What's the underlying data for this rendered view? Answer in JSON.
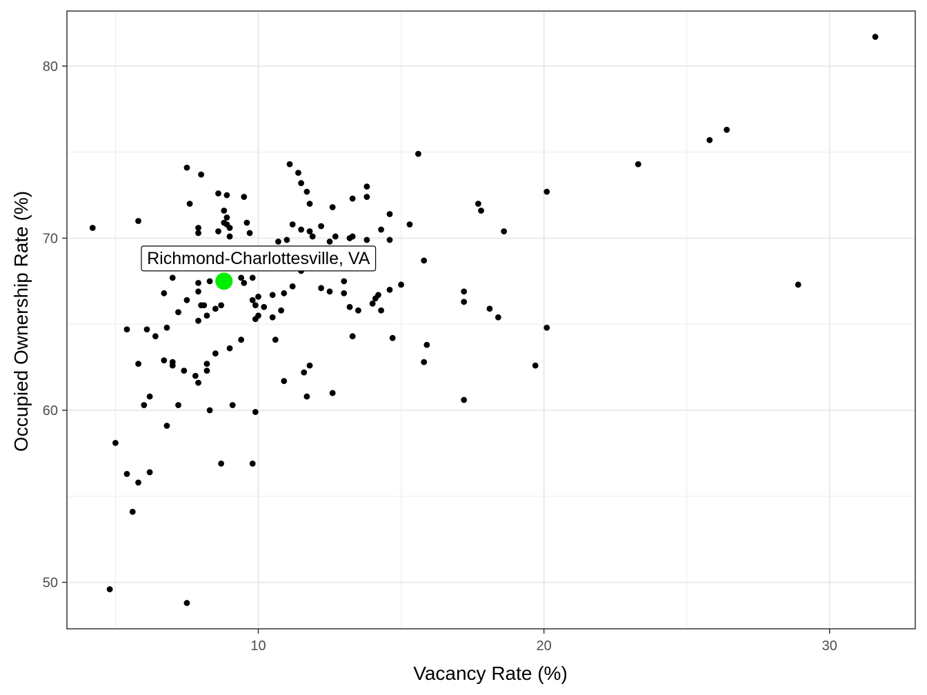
{
  "chart_data": {
    "type": "scatter",
    "title": "",
    "xlabel": "Vacancy Rate (%)",
    "ylabel": "Occupied Ownership Rate (%)",
    "xlim": [
      3.3,
      33.0
    ],
    "ylim": [
      47.3,
      83.2
    ],
    "x_ticks": [
      10,
      20,
      30
    ],
    "y_ticks": [
      50,
      60,
      70,
      80
    ],
    "x_tick_labels": [
      "10",
      "20",
      "30"
    ],
    "y_tick_labels": [
      "50",
      "60",
      "70",
      "80"
    ],
    "grid": true,
    "legend": "none",
    "colors": {
      "point": "#000000",
      "highlight": "#00ee00",
      "grid": "#ebebeb",
      "panel_border": "#333333"
    },
    "highlight": {
      "label": "Richmond-Charlottesville, VA",
      "x": 8.8,
      "y": 67.5
    },
    "points": [
      [
        4.2,
        70.6
      ],
      [
        31.6,
        81.7
      ],
      [
        26.4,
        76.3
      ],
      [
        25.8,
        75.7
      ],
      [
        23.3,
        74.3
      ],
      [
        28.9,
        67.3
      ],
      [
        20.1,
        72.7
      ],
      [
        20.1,
        64.8
      ],
      [
        19.7,
        62.6
      ],
      [
        18.6,
        70.4
      ],
      [
        18.4,
        65.4
      ],
      [
        18.1,
        65.9
      ],
      [
        17.7,
        72.0
      ],
      [
        17.8,
        71.6
      ],
      [
        17.2,
        66.9
      ],
      [
        17.2,
        66.3
      ],
      [
        17.2,
        60.6
      ],
      [
        15.6,
        74.9
      ],
      [
        15.8,
        68.7
      ],
      [
        15.9,
        63.8
      ],
      [
        15.8,
        62.8
      ],
      [
        15.3,
        70.8
      ],
      [
        15.0,
        67.3
      ],
      [
        14.7,
        64.2
      ],
      [
        14.6,
        71.4
      ],
      [
        14.6,
        69.9
      ],
      [
        14.6,
        67.0
      ],
      [
        14.3,
        70.5
      ],
      [
        14.3,
        65.8
      ],
      [
        14.2,
        66.7
      ],
      [
        14.1,
        66.5
      ],
      [
        14.0,
        66.2
      ],
      [
        13.8,
        73.0
      ],
      [
        13.8,
        72.4
      ],
      [
        13.8,
        69.9
      ],
      [
        13.5,
        65.8
      ],
      [
        13.3,
        72.3
      ],
      [
        13.3,
        70.1
      ],
      [
        13.3,
        64.3
      ],
      [
        13.2,
        70.0
      ],
      [
        13.2,
        66.0
      ],
      [
        13.0,
        67.5
      ],
      [
        13.0,
        66.8
      ],
      [
        12.7,
        70.1
      ],
      [
        12.5,
        69.8
      ],
      [
        12.5,
        66.9
      ],
      [
        12.6,
        71.8
      ],
      [
        12.6,
        61.0
      ],
      [
        12.2,
        70.7
      ],
      [
        12.2,
        67.1
      ],
      [
        11.9,
        70.1
      ],
      [
        11.8,
        72.0
      ],
      [
        11.7,
        72.7
      ],
      [
        11.8,
        70.4
      ],
      [
        11.8,
        62.6
      ],
      [
        11.7,
        60.8
      ],
      [
        11.5,
        70.5
      ],
      [
        11.6,
        62.2
      ],
      [
        11.5,
        68.1
      ],
      [
        11.5,
        73.2
      ],
      [
        11.4,
        73.8
      ],
      [
        11.1,
        74.3
      ],
      [
        11.2,
        70.8
      ],
      [
        11.2,
        67.2
      ],
      [
        11.0,
        69.9
      ],
      [
        10.9,
        66.8
      ],
      [
        10.9,
        61.7
      ],
      [
        10.8,
        65.8
      ],
      [
        10.7,
        69.8
      ],
      [
        10.6,
        64.1
      ],
      [
        10.5,
        66.7
      ],
      [
        10.5,
        65.4
      ],
      [
        10.2,
        66.0
      ],
      [
        10.0,
        66.6
      ],
      [
        10.0,
        65.5
      ],
      [
        9.9,
        66.1
      ],
      [
        9.9,
        65.3
      ],
      [
        9.8,
        67.7
      ],
      [
        9.8,
        66.4
      ],
      [
        9.9,
        59.9
      ],
      [
        9.8,
        56.9
      ],
      [
        9.6,
        70.9
      ],
      [
        9.7,
        70.3
      ],
      [
        9.5,
        72.4
      ],
      [
        9.5,
        67.4
      ],
      [
        9.4,
        67.7
      ],
      [
        9.4,
        64.1
      ],
      [
        9.1,
        60.3
      ],
      [
        9.0,
        70.6
      ],
      [
        9.0,
        70.1
      ],
      [
        9.0,
        63.6
      ],
      [
        8.9,
        72.5
      ],
      [
        8.9,
        71.2
      ],
      [
        8.9,
        70.8
      ],
      [
        8.8,
        71.6
      ],
      [
        8.8,
        70.9
      ],
      [
        8.7,
        66.1
      ],
      [
        8.7,
        56.9
      ],
      [
        8.6,
        72.6
      ],
      [
        8.6,
        70.4
      ],
      [
        8.5,
        65.9
      ],
      [
        8.5,
        63.3
      ],
      [
        8.3,
        67.5
      ],
      [
        8.3,
        60.0
      ],
      [
        8.2,
        65.5
      ],
      [
        8.2,
        62.7
      ],
      [
        8.2,
        62.3
      ],
      [
        8.0,
        73.7
      ],
      [
        8.1,
        66.1
      ],
      [
        8.0,
        66.1
      ],
      [
        7.9,
        70.6
      ],
      [
        7.9,
        70.3
      ],
      [
        7.9,
        67.4
      ],
      [
        7.9,
        66.9
      ],
      [
        7.9,
        65.2
      ],
      [
        7.9,
        61.6
      ],
      [
        7.8,
        62.0
      ],
      [
        7.6,
        72.0
      ],
      [
        7.5,
        74.1
      ],
      [
        7.5,
        66.4
      ],
      [
        7.4,
        62.3
      ],
      [
        7.2,
        65.7
      ],
      [
        7.2,
        60.3
      ],
      [
        7.0,
        67.7
      ],
      [
        7.0,
        62.8
      ],
      [
        7.0,
        62.6
      ],
      [
        6.8,
        64.8
      ],
      [
        6.7,
        66.8
      ],
      [
        6.7,
        62.9
      ],
      [
        6.8,
        59.1
      ],
      [
        6.4,
        64.3
      ],
      [
        6.1,
        64.7
      ],
      [
        6.2,
        60.8
      ],
      [
        6.2,
        56.4
      ],
      [
        6.0,
        60.3
      ],
      [
        5.8,
        71.0
      ],
      [
        5.8,
        62.7
      ],
      [
        5.8,
        55.8
      ],
      [
        5.6,
        54.1
      ],
      [
        5.4,
        64.7
      ],
      [
        5.4,
        56.3
      ],
      [
        5.0,
        58.1
      ],
      [
        4.8,
        49.6
      ],
      [
        7.5,
        48.8
      ]
    ]
  }
}
